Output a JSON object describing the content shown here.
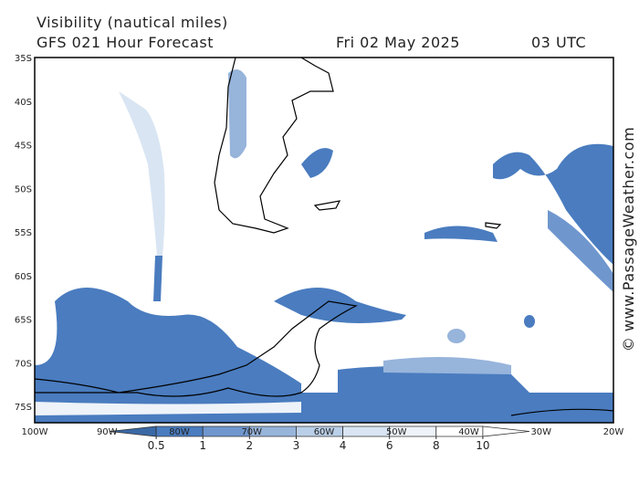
{
  "header": {
    "title": "Visibility (nautical miles)",
    "subtitle": "GFS 021 Hour Forecast",
    "date": "Fri 02 May 2025",
    "time": "03 UTC"
  },
  "map": {
    "lat_labels": [
      "35S",
      "40S",
      "45S",
      "50S",
      "55S",
      "60S",
      "65S",
      "70S",
      "75S"
    ],
    "lon_labels": [
      "100W",
      "90W",
      "80W",
      "70W",
      "60W",
      "50W",
      "40W",
      "30W",
      "20W"
    ]
  },
  "legend": {
    "levels": [
      0.5,
      1,
      2,
      3,
      4,
      6,
      8,
      10
    ],
    "colors": [
      "#3a69a6",
      "#4a7cbf",
      "#6f97ce",
      "#97b4db",
      "#bacfe8",
      "#d9e5f3",
      "#eef3f9",
      "#ffffff",
      "#ffffff"
    ]
  },
  "credit": "© www.PassageWeather.com"
}
